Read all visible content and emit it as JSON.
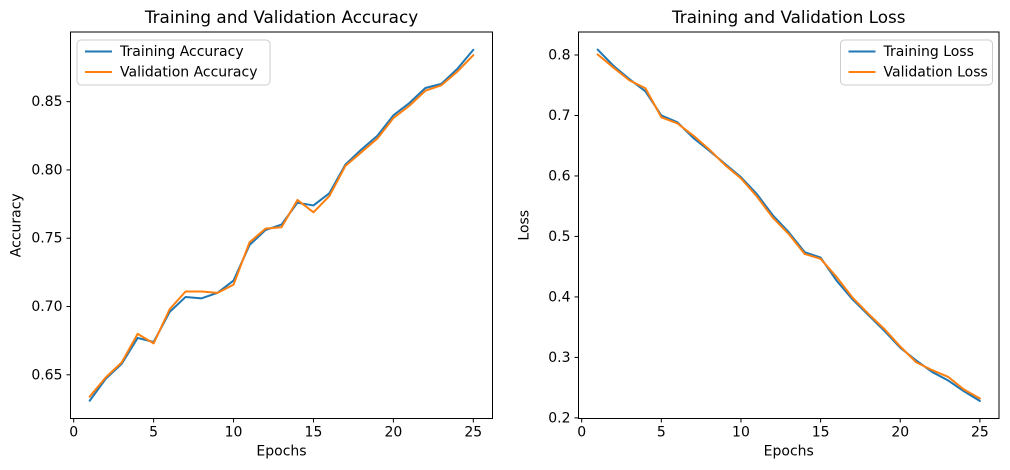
{
  "figure": {
    "background": "#ffffff",
    "accent_blue": "#1f77b4",
    "accent_orange": "#ff7f0e"
  },
  "chart_data": [
    {
      "id": "accuracy",
      "type": "line",
      "title": "Training and Validation Accuracy",
      "xlabel": "Epochs",
      "ylabel": "Accuracy",
      "x": [
        1,
        2,
        3,
        4,
        5,
        6,
        7,
        8,
        9,
        10,
        11,
        12,
        13,
        14,
        15,
        16,
        17,
        18,
        19,
        20,
        21,
        22,
        23,
        24,
        25
      ],
      "series": [
        {
          "name": "Training Accuracy",
          "color": "#1f77b4",
          "values": [
            0.631,
            0.647,
            0.658,
            0.677,
            0.674,
            0.696,
            0.707,
            0.706,
            0.71,
            0.719,
            0.745,
            0.756,
            0.76,
            0.776,
            0.774,
            0.783,
            0.804,
            0.815,
            0.825,
            0.84,
            0.849,
            0.86,
            0.863,
            0.874,
            0.888
          ]
        },
        {
          "name": "Validation Accuracy",
          "color": "#ff7f0e",
          "values": [
            0.634,
            0.648,
            0.659,
            0.68,
            0.673,
            0.698,
            0.711,
            0.711,
            0.71,
            0.716,
            0.747,
            0.757,
            0.758,
            0.778,
            0.769,
            0.781,
            0.803,
            0.813,
            0.823,
            0.838,
            0.847,
            0.858,
            0.862,
            0.872,
            0.884
          ]
        }
      ],
      "xlim": [
        -0.2,
        26.2
      ],
      "ylim": [
        0.618,
        0.901
      ],
      "xticks": {
        "values": [
          0,
          5,
          10,
          15,
          20,
          25
        ],
        "labels": [
          "0",
          "5",
          "10",
          "15",
          "20",
          "25"
        ]
      },
      "yticks": {
        "values": [
          0.65,
          0.7,
          0.75,
          0.8,
          0.85
        ],
        "labels": [
          "0.65",
          "0.70",
          "0.75",
          "0.80",
          "0.85"
        ]
      },
      "legend": {
        "position": "upper-left",
        "entries": [
          "Training Accuracy",
          "Validation Accuracy"
        ]
      },
      "grid": false
    },
    {
      "id": "loss",
      "type": "line",
      "title": "Training and Validation Loss",
      "xlabel": "Epochs",
      "ylabel": "Loss",
      "x": [
        1,
        2,
        3,
        4,
        5,
        6,
        7,
        8,
        9,
        10,
        11,
        12,
        13,
        14,
        15,
        16,
        17,
        18,
        19,
        20,
        21,
        22,
        23,
        24,
        25
      ],
      "series": [
        {
          "name": "Training Loss",
          "color": "#1f77b4",
          "values": [
            0.809,
            0.782,
            0.76,
            0.74,
            0.7,
            0.689,
            0.663,
            0.642,
            0.62,
            0.598,
            0.57,
            0.535,
            0.507,
            0.474,
            0.465,
            0.427,
            0.396,
            0.37,
            0.344,
            0.316,
            0.295,
            0.276,
            0.262,
            0.244,
            0.228
          ]
        },
        {
          "name": "Validation Loss",
          "color": "#ff7f0e",
          "values": [
            0.801,
            0.779,
            0.758,
            0.745,
            0.697,
            0.687,
            0.667,
            0.644,
            0.618,
            0.596,
            0.566,
            0.531,
            0.504,
            0.471,
            0.463,
            0.433,
            0.399,
            0.372,
            0.347,
            0.318,
            0.292,
            0.279,
            0.268,
            0.247,
            0.232
          ]
        }
      ],
      "xlim": [
        -0.2,
        26.2
      ],
      "ylim": [
        0.199,
        0.838
      ],
      "xticks": {
        "values": [
          0,
          5,
          10,
          15,
          20,
          25
        ],
        "labels": [
          "0",
          "5",
          "10",
          "15",
          "20",
          "25"
        ]
      },
      "yticks": {
        "values": [
          0.2,
          0.3,
          0.4,
          0.5,
          0.6,
          0.7,
          0.8
        ],
        "labels": [
          "0.2",
          "0.3",
          "0.4",
          "0.5",
          "0.6",
          "0.7",
          "0.8"
        ]
      },
      "legend": {
        "position": "upper-right",
        "entries": [
          "Training Loss",
          "Validation Loss"
        ]
      },
      "grid": false
    }
  ]
}
